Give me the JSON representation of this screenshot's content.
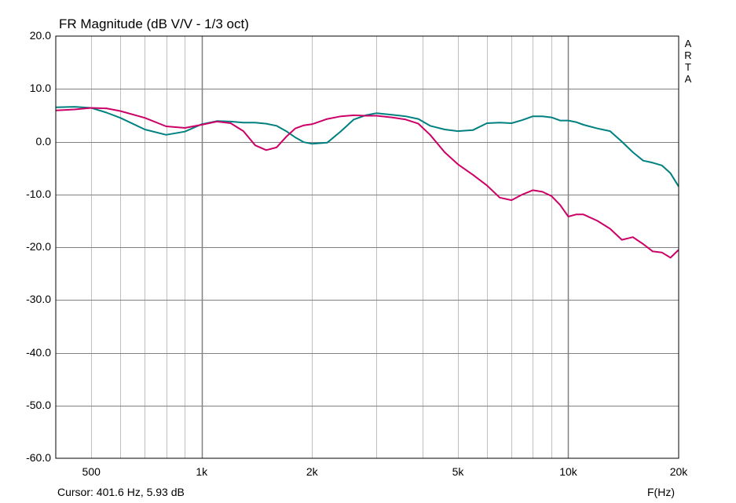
{
  "header": {
    "title": "FR Magnitude (dB V/V - 1/3 oct)"
  },
  "footer": {
    "cursor": "Cursor: 401.6 Hz, 5.93 dB",
    "xaxis_label": "F(Hz)"
  },
  "brand": {
    "letters": [
      "A",
      "R",
      "T",
      "A"
    ]
  },
  "chart_data": {
    "type": "line",
    "title": "FR Magnitude (dB V/V - 1/3 oct)",
    "xlabel": "F(Hz)",
    "ylabel": "",
    "xscale": "log",
    "xlim": [
      400,
      20000
    ],
    "ylim": [
      -60,
      20
    ],
    "grid": true,
    "legend": "none",
    "y_ticks": [
      "20.0",
      "10.0",
      "0.0",
      "-10.0",
      "-20.0",
      "-30.0",
      "-40.0",
      "-50.0",
      "-60.0"
    ],
    "x_ticks": [
      {
        "value": 500,
        "label": "500"
      },
      {
        "value": 1000,
        "label": "1k"
      },
      {
        "value": 2000,
        "label": "2k"
      },
      {
        "value": 5000,
        "label": "5k"
      },
      {
        "value": 10000,
        "label": "10k"
      },
      {
        "value": 20000,
        "label": "20k"
      }
    ],
    "series": [
      {
        "color": "#008080",
        "x": [
          400,
          450,
          500,
          550,
          600,
          700,
          800,
          900,
          1000,
          1100,
          1200,
          1300,
          1400,
          1500,
          1600,
          1700,
          1800,
          1900,
          2000,
          2200,
          2400,
          2600,
          2800,
          3000,
          3300,
          3600,
          3900,
          4200,
          4600,
          5000,
          5500,
          6000,
          6500,
          7000,
          7500,
          8000,
          8500,
          9000,
          9500,
          10000,
          10500,
          11000,
          12000,
          13000,
          14000,
          15000,
          16000,
          17000,
          18000,
          19000,
          20000
        ],
        "y": [
          6.5,
          6.6,
          6.4,
          5.5,
          4.5,
          2.3,
          1.3,
          1.9,
          3.3,
          3.9,
          3.8,
          3.6,
          3.6,
          3.4,
          3.0,
          2.0,
          0.8,
          -0.1,
          -0.4,
          -0.2,
          2.0,
          4.2,
          5.0,
          5.4,
          5.1,
          4.8,
          4.3,
          3.0,
          2.3,
          2.0,
          2.2,
          3.5,
          3.6,
          3.5,
          4.1,
          4.8,
          4.8,
          4.6,
          4.0,
          4.0,
          3.7,
          3.2,
          2.5,
          2.0,
          0.0,
          -2.0,
          -3.6,
          -4.0,
          -4.5,
          -6.0,
          -8.5
        ]
      },
      {
        "color": "#cc0066",
        "x": [
          400,
          450,
          500,
          550,
          600,
          700,
          800,
          900,
          1000,
          1100,
          1200,
          1300,
          1400,
          1500,
          1600,
          1700,
          1800,
          1900,
          2000,
          2200,
          2400,
          2600,
          2800,
          3000,
          3300,
          3600,
          3900,
          4200,
          4600,
          5000,
          5500,
          6000,
          6500,
          7000,
          7500,
          8000,
          8500,
          9000,
          9500,
          10000,
          10500,
          11000,
          12000,
          13000,
          14000,
          15000,
          16000,
          17000,
          18000,
          19000,
          20000
        ],
        "y": [
          5.9,
          6.1,
          6.4,
          6.3,
          5.8,
          4.5,
          2.9,
          2.6,
          3.2,
          3.8,
          3.5,
          2.0,
          -0.7,
          -1.6,
          -1.1,
          0.9,
          2.5,
          3.1,
          3.3,
          4.3,
          4.8,
          5.0,
          4.9,
          4.9,
          4.6,
          4.2,
          3.4,
          1.3,
          -2.0,
          -4.3,
          -6.3,
          -8.3,
          -10.6,
          -11.1,
          -10.0,
          -9.2,
          -9.5,
          -10.3,
          -12.0,
          -14.2,
          -13.8,
          -13.8,
          -15.0,
          -16.5,
          -18.6,
          -18.1,
          -19.4,
          -20.8,
          -21.0,
          -22.0,
          -20.5
        ]
      }
    ]
  }
}
